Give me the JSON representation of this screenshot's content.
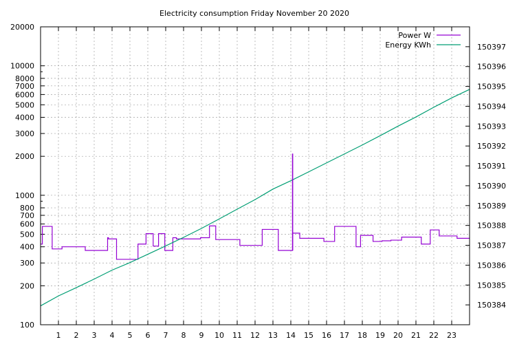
{
  "chart_data": {
    "type": "line",
    "title": "Electricity consumption Friday November 20 2020",
    "xlabel": "",
    "ylabel": "",
    "xlim": [
      0,
      24
    ],
    "x_ticks": [
      1,
      2,
      3,
      4,
      5,
      6,
      7,
      8,
      9,
      10,
      11,
      12,
      13,
      14,
      15,
      16,
      17,
      18,
      19,
      20,
      21,
      22,
      23
    ],
    "x_tick_labels": [
      "1",
      "2",
      "3",
      "4",
      "5",
      "6",
      "7",
      "8",
      "9",
      "10",
      "11",
      "12",
      "13",
      "14",
      "15",
      "16",
      "17",
      "18",
      "19",
      "20",
      "21",
      "22",
      "23"
    ],
    "y_left": {
      "scale": "log",
      "ylim": [
        100,
        20000
      ],
      "ticks": [
        100,
        200,
        300,
        400,
        500,
        600,
        700,
        800,
        1000,
        2000,
        3000,
        4000,
        5000,
        6000,
        7000,
        8000,
        10000,
        20000
      ],
      "tick_labels": [
        "100",
        "200",
        "300",
        "400",
        "500",
        "600",
        "700",
        "800",
        "1000",
        "2000",
        "3000",
        "4000",
        "5000",
        "6000",
        "7000",
        "8000",
        "10000",
        "20000"
      ]
    },
    "y_right": {
      "scale": "linear",
      "ylim": [
        150383.0,
        150398.0
      ],
      "ticks": [
        150384,
        150385,
        150386,
        150387,
        150388,
        150389,
        150390,
        150391,
        150392,
        150393,
        150394,
        150395,
        150396,
        150397
      ],
      "tick_labels": [
        "150384",
        "150385",
        "150386",
        "150387",
        "150388",
        "150389",
        "150390",
        "150391",
        "150392",
        "150393",
        "150394",
        "150395",
        "150396",
        "150397"
      ]
    },
    "grid": true,
    "legend_position": "top-right",
    "series": [
      {
        "name": "Power W",
        "axis": "left",
        "color": "#9400d3",
        "step": true,
        "x": [
          0.0,
          0.1,
          0.65,
          1.2,
          2.5,
          3.75,
          3.8,
          4.25,
          5.45,
          5.9,
          6.3,
          6.6,
          6.95,
          7.4,
          7.6,
          8.95,
          9.45,
          9.8,
          10.45,
          11.15,
          11.65,
          12.4,
          13.3,
          14.1,
          14.5,
          15.6,
          15.85,
          16.45,
          17.65,
          17.9,
          18.6,
          19.1,
          19.6,
          20.2,
          21.3,
          21.8,
          22.3,
          23.3
        ],
        "y": [
          420,
          575,
          385,
          400,
          375,
          470,
          460,
          320,
          420,
          505,
          405,
          505,
          375,
          470,
          460,
          470,
          580,
          455,
          455,
          410,
          410,
          545,
          375,
          510,
          465,
          465,
          440,
          575,
          400,
          490,
          440,
          445,
          450,
          475,
          420,
          540,
          485,
          465
        ]
      },
      {
        "name": "Energy KWh",
        "axis": "right",
        "color": "#009e73",
        "step": false,
        "x": [
          0.0,
          1.0,
          2.0,
          3.0,
          4.0,
          5.0,
          6.0,
          7.0,
          8.0,
          9.0,
          10.0,
          11.0,
          12.0,
          13.0,
          14.0,
          15.0,
          16.0,
          17.0,
          18.0,
          19.0,
          20.0,
          21.0,
          22.0,
          23.0,
          24.0
        ],
        "y": [
          150383.95,
          150384.45,
          150384.87,
          150385.3,
          150385.75,
          150386.13,
          150386.55,
          150386.97,
          150387.4,
          150387.85,
          150388.33,
          150388.82,
          150389.3,
          150389.83,
          150390.25,
          150390.7,
          150391.15,
          150391.6,
          150392.05,
          150392.52,
          150393.0,
          150393.46,
          150393.95,
          150394.42,
          150394.85
        ]
      }
    ]
  }
}
